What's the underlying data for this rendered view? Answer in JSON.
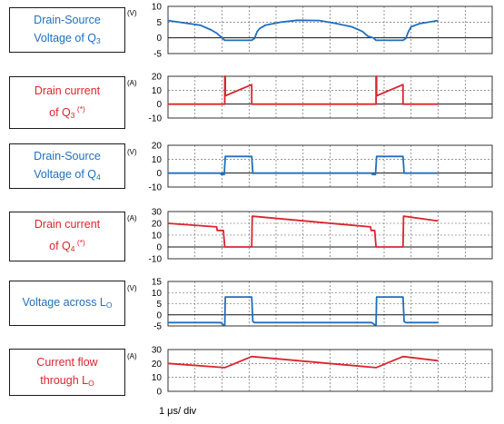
{
  "footer": "1 μs/ div",
  "chart_data": [
    {
      "type": "line",
      "label_lines": [
        {
          "text": "Drain-Source",
          "sub": "",
          "sup": ""
        },
        {
          "text": "Voltage of Q",
          "sub": "3",
          "sup": ""
        }
      ],
      "unit": "(V)",
      "color": "#1f6fbf",
      "ylim": [
        -5,
        10
      ],
      "yticks": [
        -5,
        0,
        5,
        10
      ],
      "xlim": [
        0,
        12
      ],
      "grid": true,
      "x": [
        0,
        1.2,
        1.6,
        1.8,
        2.0,
        2.1,
        2.2,
        3.1,
        3.2,
        3.3,
        3.4,
        3.6,
        4.2,
        4.8,
        5.6,
        6.2,
        6.8,
        7.2,
        7.4,
        7.6,
        7.7,
        7.8,
        8.7,
        8.8,
        8.9,
        9.0,
        9.3,
        10.0
      ],
      "values": [
        5.5,
        4.0,
        2.5,
        1.5,
        0.0,
        -0.8,
        -0.8,
        -0.8,
        -0.2,
        2.0,
        3.0,
        4.0,
        5.0,
        5.6,
        5.5,
        4.6,
        3.5,
        2.0,
        0.5,
        0.0,
        -0.8,
        -0.8,
        -0.8,
        -0.2,
        2.0,
        3.5,
        4.5,
        5.5
      ]
    },
    {
      "type": "line",
      "label_lines": [
        {
          "text": "Drain current",
          "sub": "",
          "sup": ""
        },
        {
          "text": "of Q",
          "sub": "3",
          "sup": " (*)"
        }
      ],
      "unit": "(A)",
      "color": "#d9262e",
      "ylim": [
        -10,
        20
      ],
      "yticks": [
        -10,
        0,
        10,
        20
      ],
      "xlim": [
        0,
        12
      ],
      "grid": true,
      "x": [
        0,
        2.1,
        2.1,
        2.12,
        2.12,
        3.1,
        3.1,
        3.17,
        3.17,
        7.7,
        7.7,
        7.72,
        7.72,
        8.7,
        8.7,
        8.77,
        8.77,
        10.0
      ],
      "values": [
        0,
        0,
        20,
        20,
        6,
        14,
        0,
        0,
        0,
        0,
        20,
        20,
        6,
        14,
        0,
        0,
        0,
        0
      ]
    },
    {
      "type": "line",
      "label_lines": [
        {
          "text": "Drain-Source",
          "sub": "",
          "sup": ""
        },
        {
          "text": "Voltage of Q",
          "sub": "4",
          "sup": ""
        }
      ],
      "unit": "(V)",
      "color": "#1f6fbf",
      "ylim": [
        -10,
        20
      ],
      "yticks": [
        -10,
        0,
        10,
        20
      ],
      "xlim": [
        0,
        12
      ],
      "grid": true,
      "x": [
        0,
        1.95,
        1.97,
        2.08,
        2.12,
        3.1,
        3.14,
        3.16,
        3.2,
        7.55,
        7.57,
        7.68,
        7.72,
        8.7,
        8.74,
        8.76,
        8.8,
        10.0
      ],
      "values": [
        0,
        0,
        -1,
        -1,
        12,
        12,
        0,
        0,
        0,
        0,
        -1,
        -1,
        12,
        12,
        0,
        0,
        0,
        0
      ]
    },
    {
      "type": "line",
      "label_lines": [
        {
          "text": "Drain current",
          "sub": "",
          "sup": ""
        },
        {
          "text": "of Q",
          "sub": "4",
          "sup": " (*)"
        }
      ],
      "unit": "(A)",
      "color": "#d9262e",
      "ylim": [
        -10,
        30
      ],
      "yticks": [
        -10,
        0,
        10,
        20,
        30
      ],
      "xlim": [
        0,
        12
      ],
      "grid": true,
      "x": [
        0,
        1.8,
        1.82,
        2.05,
        2.1,
        2.12,
        3.1,
        3.12,
        3.14,
        7.5,
        7.52,
        7.65,
        7.7,
        7.72,
        8.7,
        8.72,
        8.74,
        10.0
      ],
      "values": [
        20,
        17,
        14,
        14,
        0,
        0,
        0,
        26,
        26,
        17,
        14,
        14,
        0,
        0,
        0,
        26,
        26,
        22
      ]
    },
    {
      "type": "line",
      "label_lines": [
        {
          "text": "Voltage across L",
          "sub": "O",
          "sup": ""
        }
      ],
      "unit": "(V)",
      "color": "#1f6fbf",
      "ylim": [
        -5,
        15
      ],
      "yticks": [
        -5,
        0,
        5,
        10,
        15
      ],
      "xlim": [
        0,
        12
      ],
      "grid": true,
      "x": [
        0,
        1.95,
        2.05,
        2.1,
        2.12,
        3.1,
        3.14,
        3.2,
        7.55,
        7.65,
        7.7,
        7.72,
        8.7,
        8.74,
        8.8,
        10.0
      ],
      "values": [
        -3.5,
        -3.5,
        -4.5,
        -4.5,
        8,
        8,
        -3,
        -3.5,
        -3.5,
        -4.5,
        -4.5,
        8,
        8,
        -3,
        -3.5,
        -3.5
      ]
    },
    {
      "type": "line",
      "label_lines": [
        {
          "text": "Current flow",
          "sub": "",
          "sup": ""
        },
        {
          "text": "through L",
          "sub": "O",
          "sup": ""
        }
      ],
      "unit": "(A)",
      "color": "#d9262e",
      "ylim": [
        0,
        30
      ],
      "yticks": [
        0,
        10,
        20,
        30
      ],
      "xlim": [
        0,
        12
      ],
      "grid": true,
      "x": [
        0,
        2.1,
        3.1,
        7.7,
        8.7,
        10.0
      ],
      "values": [
        20,
        17,
        25,
        17,
        25,
        22
      ]
    }
  ]
}
